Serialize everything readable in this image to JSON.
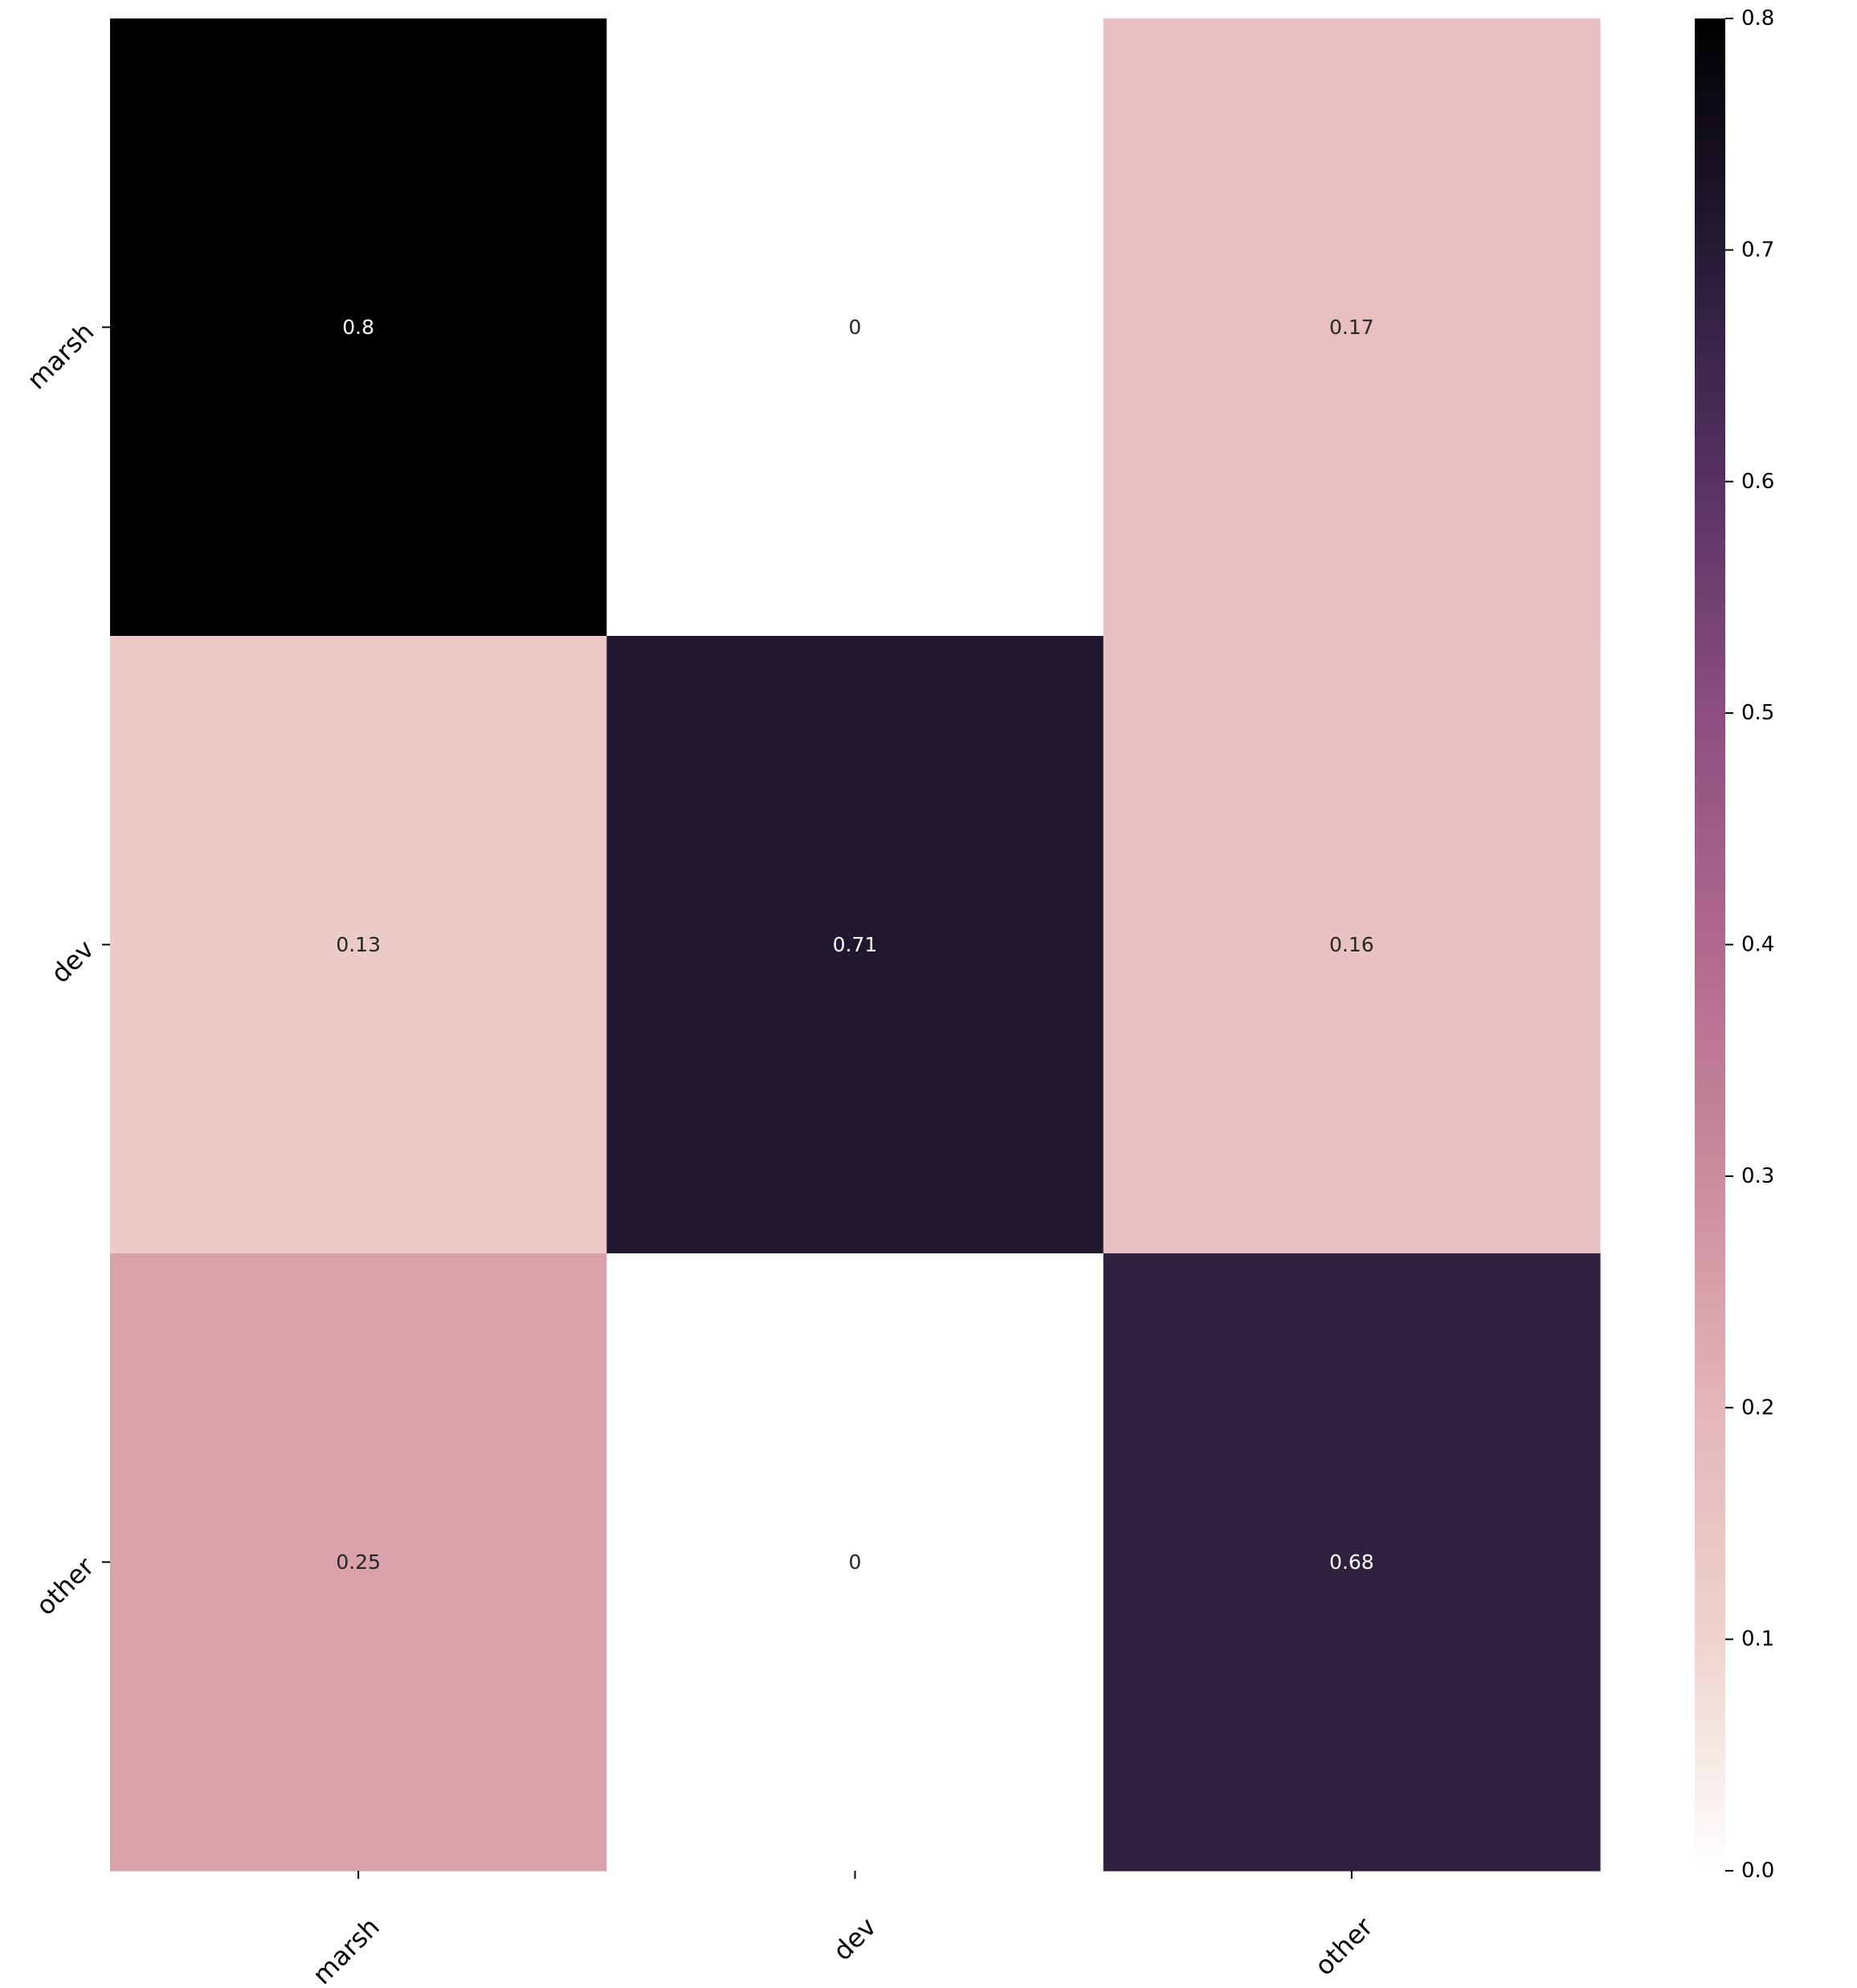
{
  "chart_data": {
    "type": "heatmap",
    "title": "",
    "xlabel": "",
    "ylabel": "",
    "x_categories": [
      "marsh",
      "dev",
      "other"
    ],
    "y_categories": [
      "marsh",
      "dev",
      "other"
    ],
    "values": [
      [
        0.8,
        0,
        0.17
      ],
      [
        0.13,
        0.71,
        0.16
      ],
      [
        0.25,
        0,
        0.68
      ]
    ],
    "cell_labels": [
      [
        "0.8",
        "0",
        "0.17"
      ],
      [
        "0.13",
        "0.71",
        "0.16"
      ],
      [
        "0.25",
        "0",
        "0.68"
      ]
    ],
    "colorbar": {
      "range": [
        0.0,
        0.8
      ],
      "ticks": [
        0.0,
        0.1,
        0.2,
        0.3,
        0.4,
        0.5,
        0.6,
        0.7,
        0.8
      ],
      "tick_labels": [
        "0.0",
        "0.1",
        "0.2",
        "0.3",
        "0.4",
        "0.5",
        "0.6",
        "0.7",
        "0.8"
      ]
    },
    "colormap": [
      {
        "v": 0.0,
        "color": "#ffffff"
      },
      {
        "v": 0.1,
        "color": "#eed3cd"
      },
      {
        "v": 0.2,
        "color": "#e4b6ba"
      },
      {
        "v": 0.3,
        "color": "#cb8b9c"
      },
      {
        "v": 0.4,
        "color": "#b0698e"
      },
      {
        "v": 0.5,
        "color": "#8c4f7f"
      },
      {
        "v": 0.6,
        "color": "#573263"
      },
      {
        "v": 0.7,
        "color": "#251b35"
      },
      {
        "v": 0.8,
        "color": "#000000"
      }
    ],
    "grid": false,
    "legend": "colorbar-right",
    "tick_label_rotation_deg": 45,
    "annotation_dark_text_color": "#262626",
    "annotation_light_text_color": "#ffffff"
  }
}
